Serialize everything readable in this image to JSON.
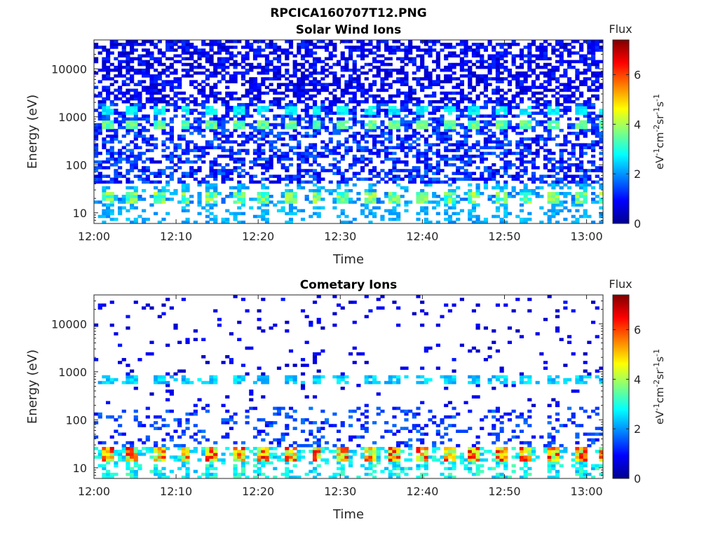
{
  "figure_title": "RPCICA160707T12.PNG",
  "colorbar": {
    "title": "Flux",
    "label": "eV-1cm-2sr-1s-1",
    "min": 0,
    "max": 7.4,
    "ticks": [
      "0",
      "2",
      "4",
      "6"
    ],
    "colormap": "jet"
  },
  "chart_data": [
    {
      "type": "heatmap",
      "title": "Solar Wind Ions",
      "xlabel": "Time",
      "ylabel": "Energy (eV)",
      "x_ticks": [
        "12:00",
        "12:10",
        "12:20",
        "12:30",
        "12:40",
        "12:50",
        "13:00"
      ],
      "y_ticks": [
        "10",
        "100",
        "1000",
        "10000"
      ],
      "y_scale": "log",
      "ylim": [
        6,
        40000
      ],
      "xlim": [
        "12:00",
        "13:02"
      ],
      "features": [
        {
          "energy_eV": 700,
          "flux": 3.6,
          "period_min": 3.2,
          "note": "periodic bright band"
        },
        {
          "energy_eV": 1400,
          "flux": 2.4,
          "note": "periodic band"
        },
        {
          "energy_eV": 20,
          "flux": 3.6,
          "note": "periodic low-energy band"
        },
        {
          "energy_eV": 10,
          "flux": 2.3,
          "note": "sparse low-energy pixels"
        },
        {
          "energy_range_eV": [
            2000,
            40000
          ],
          "flux": 0.5,
          "note": "background noise"
        }
      ]
    },
    {
      "type": "heatmap",
      "title": "Cometary Ions",
      "xlabel": "Time",
      "ylabel": "Energy (eV)",
      "x_ticks": [
        "12:00",
        "12:10",
        "12:20",
        "12:30",
        "12:40",
        "12:50",
        "13:00"
      ],
      "y_ticks": [
        "10",
        "100",
        "1000",
        "10000"
      ],
      "y_scale": "log",
      "ylim": [
        6,
        40000
      ],
      "xlim": [
        "12:00",
        "13:02"
      ],
      "features": [
        {
          "energy_eV": 700,
          "flux": 2.6,
          "period_min": 3.2,
          "note": "periodic band"
        },
        {
          "energy_eV": 20,
          "flux": 6.0,
          "period_min": 3.2,
          "note": "intense periodic low-energy band"
        },
        {
          "energy_eV": 10,
          "flux": 3.0,
          "note": "low-energy pixels"
        },
        {
          "energy_range_eV": [
            50,
            40000
          ],
          "flux": 0.8,
          "note": "sparse scattered pixels"
        }
      ]
    }
  ]
}
